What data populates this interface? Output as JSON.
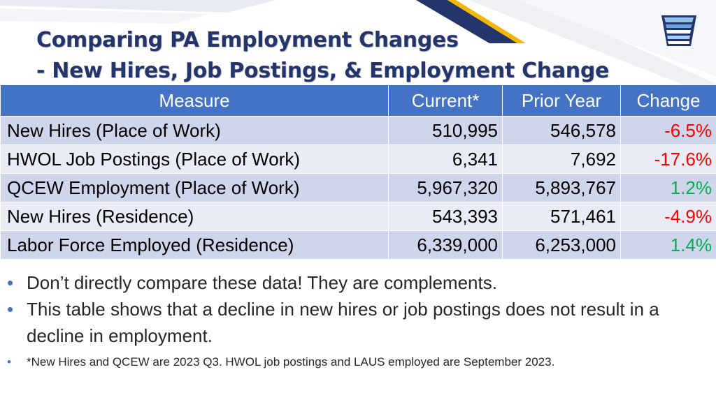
{
  "slide": {
    "title_line1": "Comparing PA Employment Changes",
    "title_line2": "- New Hires, Job Postings, & Employment Change"
  },
  "table": {
    "headers": [
      "Measure",
      "Current*",
      "Prior Year",
      "Change"
    ],
    "rows": [
      {
        "measure": "New Hires (Place of Work)",
        "current": "510,995",
        "prior": "546,578",
        "change": "-6.5%",
        "change_color": "#ff0000"
      },
      {
        "measure": "HWOL Job Postings (Place of Work)",
        "current": "6,341",
        "prior": "7,692",
        "change": "-17.6%",
        "change_color": "#ff0000"
      },
      {
        "measure": "QCEW Employment (Place of Work)",
        "current": "5,967,320",
        "prior": "5,893,767",
        "change": "1.2%",
        "change_color": "#00b050"
      },
      {
        "measure": "New Hires (Residence)",
        "current": "543,393",
        "prior": "571,461",
        "change": "-4.9%",
        "change_color": "#ff0000"
      },
      {
        "measure": "Labor Force Employed (Residence)",
        "current": "6,339,000",
        "prior": "6,253,000",
        "change": "1.4%",
        "change_color": "#00b050"
      }
    ]
  },
  "bullets": [
    "Don’t directly compare these data! They are complements.",
    "This table shows that a decline in new hires or job postings does not result in a decline in employment.",
    "*New Hires and QCEW are 2023 Q3. HWOL job postings and LAUS employed are September 2023."
  ],
  "bullet_glyph": "•",
  "colors": {
    "title": "#24356b",
    "header_bg": "#4472c4",
    "row_odd": "#cfd5ea",
    "row_even": "#e9ebf5",
    "negative": "#ff0000",
    "positive": "#00b050",
    "accent_gold": "#f2b705",
    "accent_navy": "#24356b"
  },
  "icons": [
    "keystone-logo-icon",
    "bullet-dot-icon"
  ]
}
